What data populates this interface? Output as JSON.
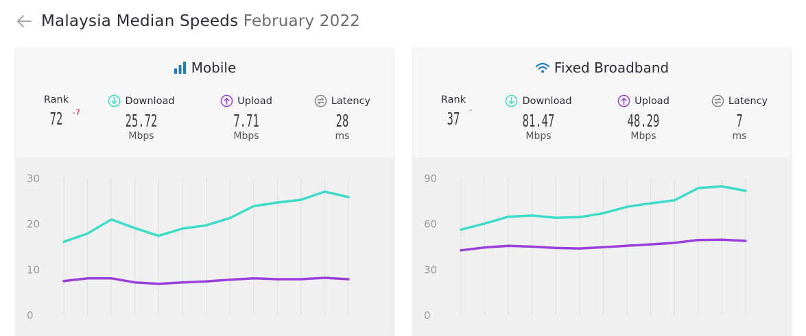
{
  "header": {
    "back_icon": "arrow-left-icon",
    "title": "Malaysia Median Speeds",
    "subtitle": "February 2022"
  },
  "colors": {
    "download": "#3ddcc8",
    "upload": "#9b3fdc",
    "latency": "#888888",
    "mobile_icon": "#1a7fc4",
    "rank_change": "#c8102e"
  },
  "mobile": {
    "title": "Mobile",
    "icon": "signal-bars-icon",
    "rank_label": "Rank",
    "rank_value": "72",
    "rank_change": "-7",
    "download_label": "Download",
    "download_value": "25.72",
    "download_unit": "Mbps",
    "upload_label": "Upload",
    "upload_value": "7.71",
    "upload_unit": "Mbps",
    "latency_label": "Latency",
    "latency_value": "28",
    "latency_unit": "ms"
  },
  "fixed": {
    "title": "Fixed Broadband",
    "icon": "wifi-icon",
    "rank_label": "Rank",
    "rank_value": "37",
    "rank_change": "-",
    "download_label": "Download",
    "download_value": "81.47",
    "download_unit": "Mbps",
    "upload_label": "Upload",
    "upload_value": "48.29",
    "upload_unit": "Mbps",
    "latency_label": "Latency",
    "latency_value": "7",
    "latency_unit": "ms"
  },
  "chart_data": [
    {
      "type": "line",
      "ylim": [
        0,
        30
      ],
      "yticks": [
        0,
        10,
        20,
        30
      ],
      "grid": true,
      "x": [
        1,
        2,
        3,
        4,
        5,
        6,
        7,
        8,
        9,
        10,
        11,
        12,
        13
      ],
      "series": [
        {
          "values": [
            16.0,
            17.8,
            20.9,
            19.0,
            17.3,
            18.9,
            19.6,
            21.2,
            23.8,
            24.6,
            25.2,
            27.0,
            25.8
          ]
        },
        {
          "values": [
            7.4,
            8.0,
            8.0,
            7.1,
            6.8,
            7.1,
            7.3,
            7.7,
            8.0,
            7.8,
            7.8,
            8.1,
            7.8
          ]
        }
      ]
    },
    {
      "type": "line",
      "ylim": [
        0,
        90
      ],
      "yticks": [
        0,
        30,
        60,
        90
      ],
      "grid": true,
      "x": [
        1,
        2,
        3,
        4,
        5,
        6,
        7,
        8,
        9,
        10,
        11,
        12,
        13
      ],
      "series": [
        {
          "values": [
            56,
            60,
            64.5,
            65.3,
            63.8,
            64.2,
            66.8,
            71,
            73.3,
            75.3,
            83.3,
            84.4,
            81.5
          ]
        },
        {
          "values": [
            42.4,
            44.3,
            45.3,
            44.8,
            43.9,
            43.6,
            44.4,
            45.4,
            46.3,
            47.3,
            49.2,
            49.4,
            48.6
          ]
        }
      ]
    }
  ]
}
